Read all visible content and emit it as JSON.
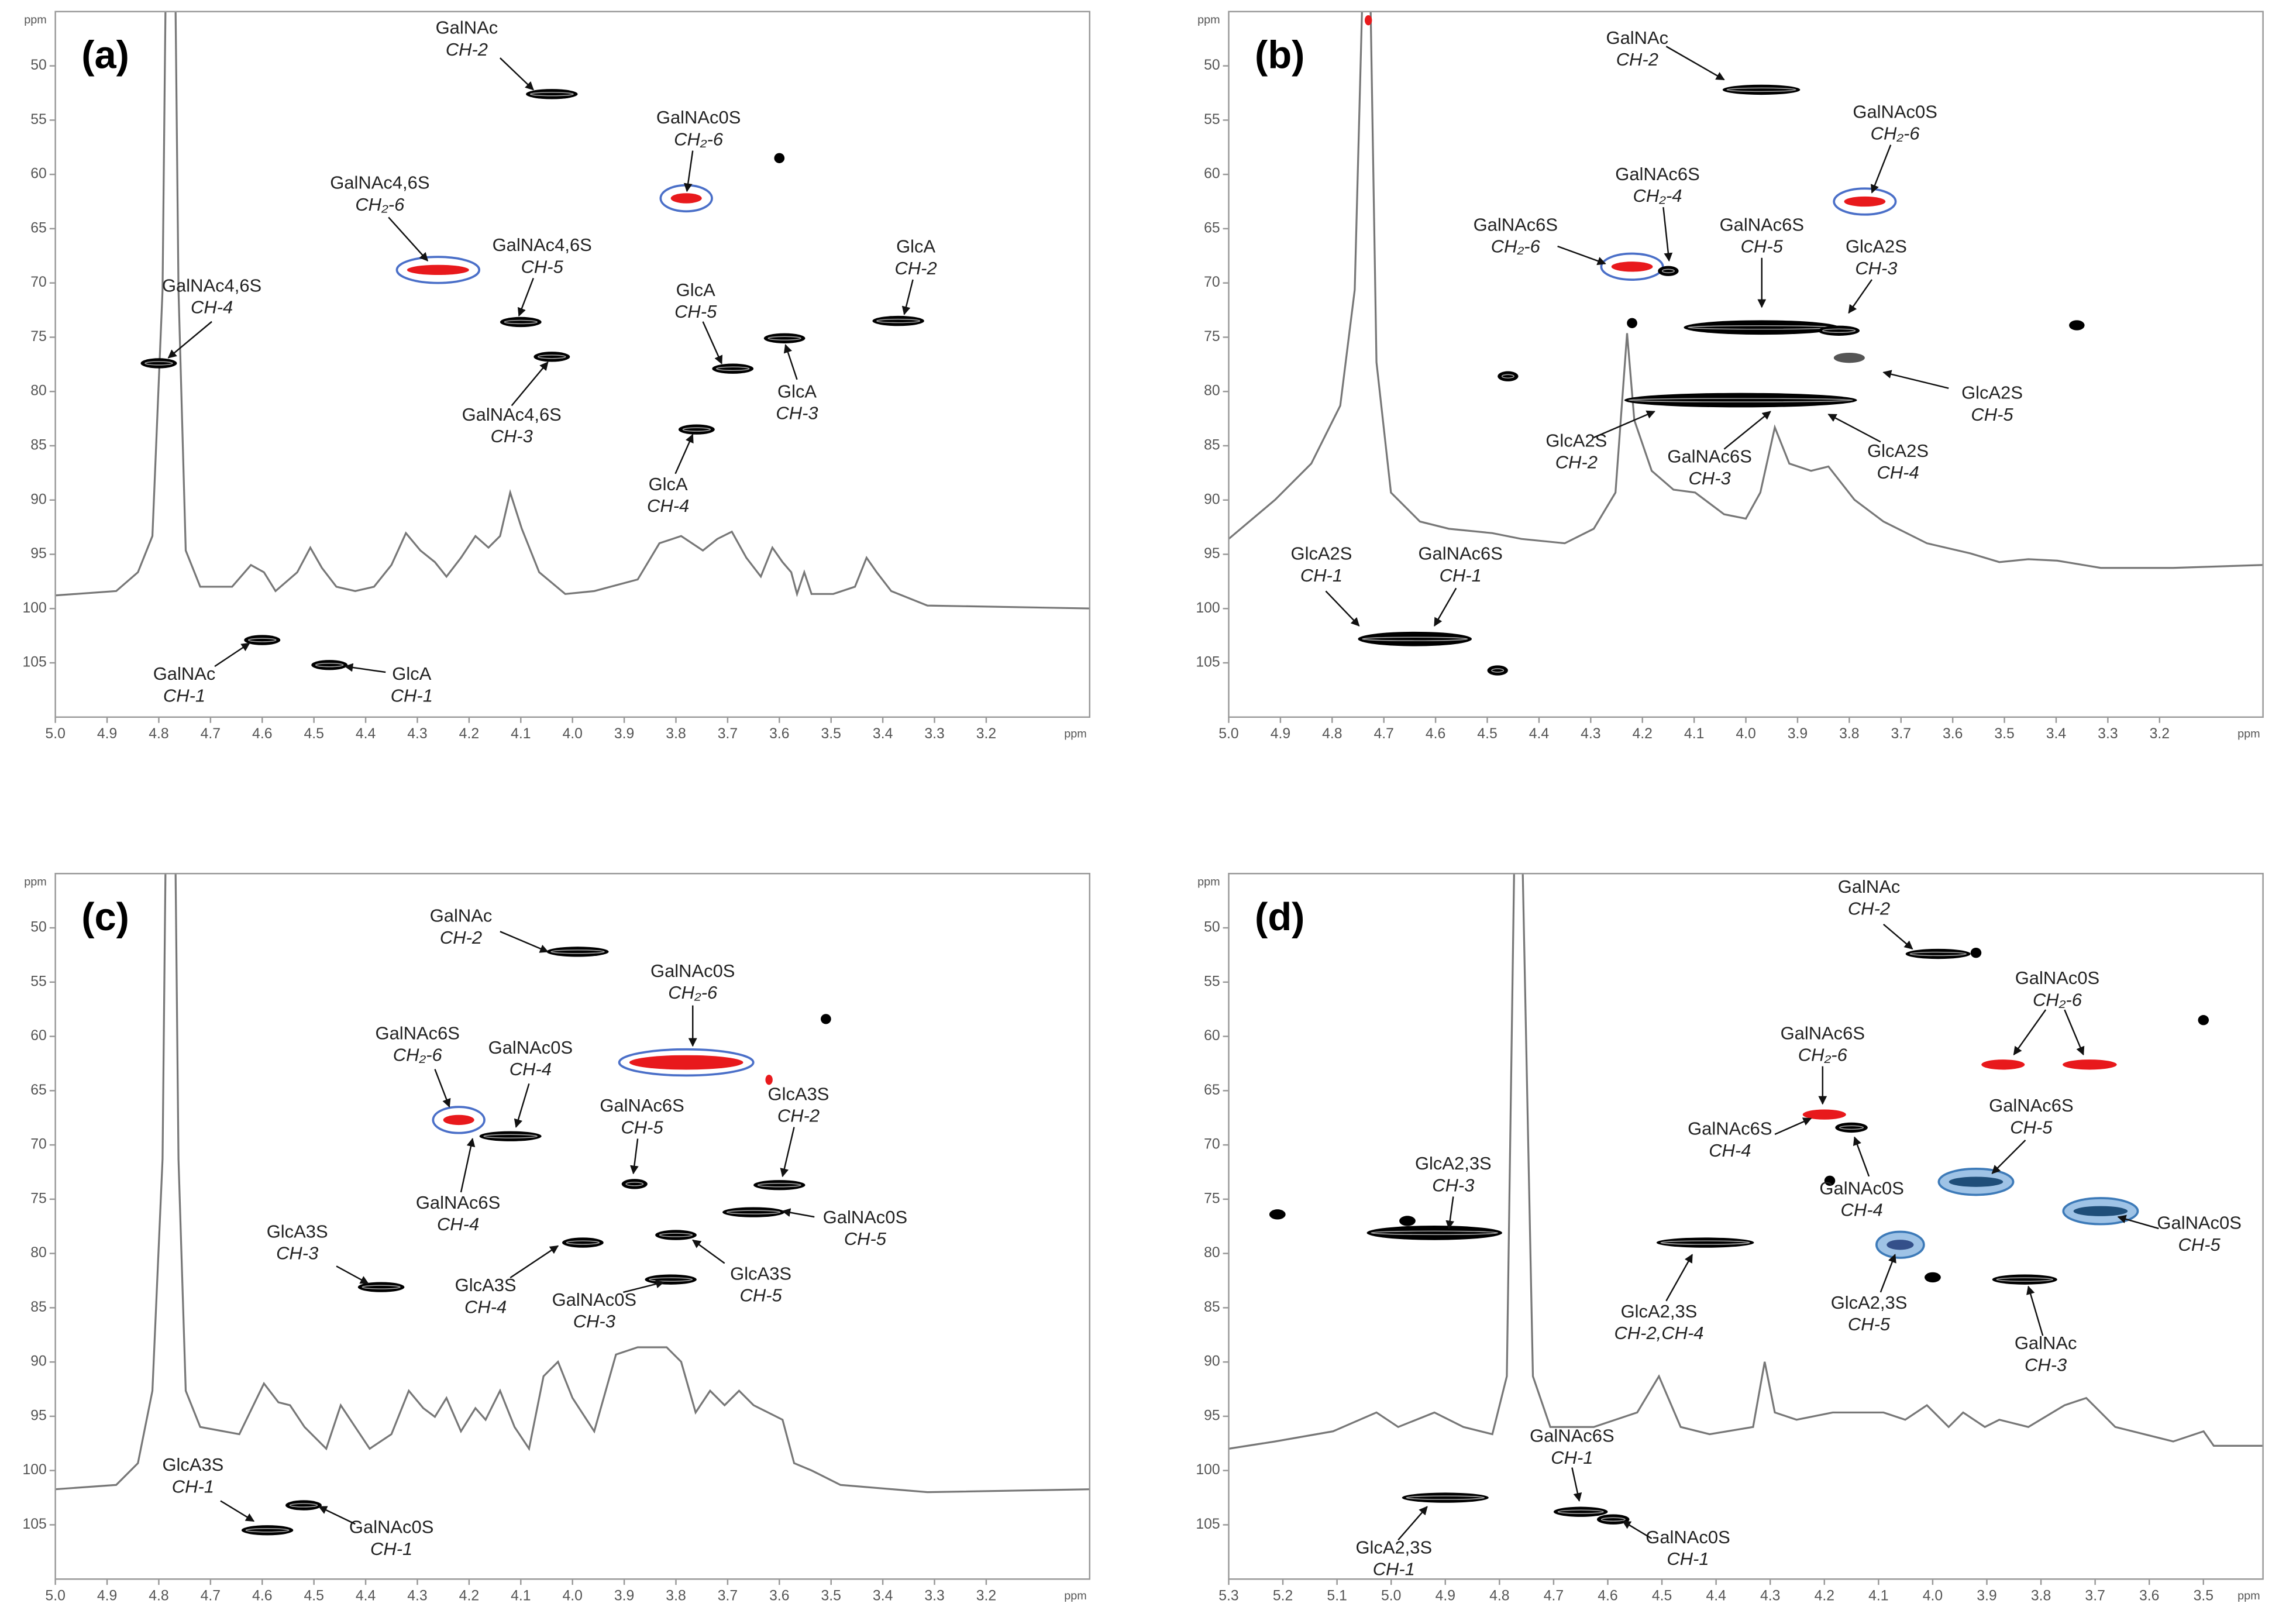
{
  "chart_data": [
    {
      "type": "scatter",
      "label": "(a)",
      "x_label": "ppm",
      "y_label": "ppm",
      "xlim": [
        5.0,
        3.0
      ],
      "ylim": [
        45,
        110
      ],
      "xticks": [
        {
          "value": 5.0,
          "label": "5.0"
        },
        4.9,
        4.8,
        4.7,
        4.6,
        4.5,
        4.4,
        4.3,
        4.2,
        4.1,
        {
          "value": 4.0,
          "label": "4.0"
        },
        3.9,
        3.8,
        3.7,
        3.6,
        3.5,
        3.4,
        3.3,
        3.2
      ],
      "yticks": [
        50,
        55,
        60,
        65,
        70,
        75,
        80,
        85,
        90,
        95,
        100,
        105
      ],
      "x": [
        4.04,
        3.78,
        3.6,
        4.26,
        4.1,
        4.04,
        3.37,
        3.69,
        3.59,
        3.76,
        4.8,
        4.6,
        4.47
      ],
      "y": [
        52.6,
        62.2,
        58.5,
        68.8,
        73.6,
        76.8,
        73.5,
        77.9,
        75.1,
        83.5,
        77.4,
        102.9,
        105.2
      ],
      "widths": [
        0.1,
        0.06,
        0.02,
        0.12,
        0.08,
        0.07,
        0.1,
        0.08,
        0.08,
        0.07,
        0.07,
        0.07,
        0.07
      ],
      "colors": [
        "#000",
        "#e8191c",
        "#000",
        "#e8191c",
        "#000",
        "#000",
        "#000",
        "#000",
        "#000",
        "#000",
        "#000",
        "#000",
        "#000"
      ],
      "rings": [
        false,
        true,
        false,
        true,
        false,
        false,
        false,
        false,
        false,
        false,
        false,
        false,
        false
      ],
      "ring_color": "#4a6fc8",
      "annotations": [
        [
          "GalNAc",
          "CH-2"
        ],
        [
          "GalNAc0S",
          "CH₂-6"
        ],
        [
          "GalNAc4,6S",
          "CH₂-6"
        ],
        [
          "GalNAc4,6S",
          "CH-5"
        ],
        [
          "GalNAc4,6S",
          "CH-3"
        ],
        [
          "GlcA",
          "CH-2"
        ],
        [
          "GlcA",
          "CH-5"
        ],
        [
          "GlcA",
          "CH-3"
        ],
        [
          "GlcA",
          "CH-4"
        ],
        [
          "GalNAc4,6S",
          "CH-4"
        ],
        [
          "GalNAc",
          "CH-1"
        ],
        [
          "GlcA",
          "CH-1"
        ]
      ]
    },
    {
      "type": "scatter",
      "label": "(b)",
      "x_label": "ppm",
      "y_label": "ppm",
      "xlim": [
        5.0,
        3.0
      ],
      "ylim": [
        45,
        110
      ],
      "xticks": [
        {
          "value": 5.0,
          "label": "5.0"
        },
        4.9,
        4.8,
        4.7,
        4.6,
        4.5,
        4.4,
        4.3,
        4.2,
        4.1,
        {
          "value": 4.0,
          "label": "4.0"
        },
        3.9,
        3.8,
        3.7,
        3.6,
        3.5,
        3.4,
        3.3,
        3.2
      ],
      "yticks": [
        50,
        55,
        60,
        65,
        70,
        75,
        80,
        85,
        90,
        95,
        100,
        105
      ],
      "x": [
        3.97,
        3.77,
        4.22,
        4.15,
        3.97,
        3.82,
        3.8,
        4.01,
        4.64,
        4.46,
        4.48,
        4.73,
        3.36,
        4.22
      ],
      "y": [
        52.2,
        62.5,
        68.5,
        68.9,
        74.1,
        74.4,
        76.9,
        80.8,
        102.8,
        78.6,
        105.7,
        45.8,
        73.9,
        73.7
      ],
      "widths": [
        0.15,
        0.08,
        0.08,
        0.04,
        0.3,
        0.08,
        0.06,
        0.45,
        0.22,
        0.04,
        0.04,
        0.01,
        0.03,
        0.02
      ],
      "colors": [
        "#000",
        "#e8191c",
        "#e8191c",
        "#000",
        "#000",
        "#000",
        "#555",
        "#000",
        "#000",
        "#000",
        "#000",
        "#e8191c",
        "#000",
        "#000"
      ],
      "rings": [
        false,
        true,
        true,
        false,
        false,
        false,
        false,
        false,
        false,
        false,
        false,
        false,
        false,
        false
      ],
      "ring_color": "#4a6fc8",
      "annotations": [
        [
          "GalNAc",
          "CH-2"
        ],
        [
          "GalNAc0S",
          "CH₂-6"
        ],
        [
          "GalNAc6S",
          "CH₂-4"
        ],
        [
          "GalNAc6S",
          "CH₂-6"
        ],
        [
          "GalNAc6S",
          "CH-5"
        ],
        [
          "GlcA2S",
          "CH-3"
        ],
        [
          "GlcA2S",
          "CH-5"
        ],
        [
          "GlcA2S",
          "CH-2"
        ],
        [
          "GalNAc6S",
          "CH-3"
        ],
        [
          "GlcA2S",
          "CH-4"
        ],
        [
          "GlcA2S",
          "CH-1"
        ],
        [
          "GalNAc6S",
          "CH-1"
        ]
      ]
    },
    {
      "type": "scatter",
      "label": "(c)",
      "x_label": "ppm",
      "y_label": "ppm",
      "xlim": [
        5.0,
        3.0
      ],
      "ylim": [
        45,
        110
      ],
      "xticks": [
        {
          "value": 5.0,
          "label": "5.0"
        },
        4.9,
        4.8,
        4.7,
        4.6,
        4.5,
        4.4,
        4.3,
        4.2,
        4.1,
        {
          "value": 4.0,
          "label": "4.0"
        },
        3.9,
        3.8,
        3.7,
        3.6,
        3.5,
        3.4,
        3.3,
        3.2
      ],
      "yticks": [
        50,
        55,
        60,
        65,
        70,
        75,
        80,
        85,
        90,
        95,
        100,
        105
      ],
      "x": [
        3.99,
        3.78,
        3.62,
        3.51,
        4.22,
        4.12,
        3.6,
        3.88,
        3.65,
        3.98,
        3.8,
        3.81,
        4.37,
        4.59,
        4.52
      ],
      "y": [
        52.2,
        62.4,
        64.0,
        58.4,
        67.7,
        69.2,
        73.7,
        73.6,
        76.2,
        79.0,
        78.3,
        82.4,
        83.1,
        105.5,
        103.2
      ],
      "widths": [
        0.12,
        0.22,
        0.01,
        0.02,
        0.06,
        0.12,
        0.1,
        0.05,
        0.12,
        0.08,
        0.08,
        0.1,
        0.09,
        0.1,
        0.07
      ],
      "colors": [
        "#000",
        "#e8191c",
        "#e8191c",
        "#000",
        "#e8191c",
        "#000",
        "#000",
        "#000",
        "#000",
        "#000",
        "#000",
        "#000",
        "#000",
        "#000",
        "#000"
      ],
      "rings": [
        false,
        true,
        false,
        false,
        true,
        false,
        false,
        false,
        false,
        false,
        false,
        false,
        false,
        false,
        false
      ],
      "ring_color": "#4a6fc8",
      "annotations": [
        [
          "GalNAc",
          "CH-2"
        ],
        [
          "GalNAc0S",
          "CH₂-6"
        ],
        [
          "GalNAc6S",
          "CH₂-6"
        ],
        [
          "GalNAc0S",
          "CH-4"
        ],
        [
          "GalNAc6S",
          "CH-4"
        ],
        [
          "GalNAc6S",
          "CH-5"
        ],
        [
          "GlcA3S",
          "CH-2"
        ],
        [
          "GalNAc0S",
          "CH-5"
        ],
        [
          "GlcA3S",
          "CH-3"
        ],
        [
          "GlcA3S",
          "CH-4"
        ],
        [
          "GalNAc0S",
          "CH-3"
        ],
        [
          "GlcA3S",
          "CH-5"
        ],
        [
          "GlcA3S",
          "CH-1"
        ],
        [
          "GalNAc0S",
          "CH-1"
        ]
      ]
    },
    {
      "type": "scatter",
      "label": "(d)",
      "x_label": "ppm",
      "y_label": "ppm",
      "xlim": [
        5.3,
        3.39
      ],
      "ylim": [
        45,
        110
      ],
      "xticks": [
        5.3,
        5.2,
        5.1,
        {
          "value": 5.0,
          "label": "5.0"
        },
        4.9,
        4.8,
        4.7,
        4.6,
        4.5,
        4.4,
        4.3,
        4.2,
        4.1,
        {
          "value": 4.0,
          "label": "4.0"
        },
        3.9,
        3.8,
        3.7,
        3.6,
        3.5
      ],
      "yticks": [
        50,
        55,
        60,
        65,
        70,
        75,
        80,
        85,
        90,
        95,
        100,
        105
      ],
      "x": [
        3.99,
        3.92,
        3.87,
        3.71,
        3.5,
        4.2,
        4.15,
        3.92,
        3.69,
        4.92,
        4.42,
        4.06,
        3.83,
        4.19,
        4.0,
        5.21,
        4.97,
        4.9,
        4.65,
        4.59
      ],
      "y": [
        52.4,
        52.3,
        62.6,
        62.6,
        58.5,
        67.2,
        68.4,
        73.4,
        76.1,
        78.1,
        79.0,
        79.2,
        82.4,
        73.3,
        82.2,
        76.4,
        77.0,
        102.5,
        103.8,
        104.5
      ],
      "widths": [
        0.12,
        0.02,
        0.08,
        0.1,
        0.02,
        0.08,
        0.06,
        0.1,
        0.1,
        0.25,
        0.18,
        0.05,
        0.12,
        0.02,
        0.03,
        0.03,
        0.03,
        0.16,
        0.1,
        0.06
      ],
      "colors": [
        "#000",
        "#000",
        "#e8191c",
        "#e8191c",
        "#000",
        "#e8191c",
        "#000",
        "#1f4e79",
        "#1f4e79",
        "#000",
        "#000",
        "#34508a",
        "#000",
        "#000",
        "#000",
        "#000",
        "#000",
        "#000",
        "#000",
        "#000"
      ],
      "rings": [
        false,
        false,
        false,
        false,
        false,
        false,
        false,
        true,
        true,
        false,
        false,
        true,
        false,
        false,
        false,
        false,
        false,
        false,
        false,
        false
      ],
      "ring_color": "#3d7ab8",
      "annotations": [
        [
          "GalNAc",
          "CH-2"
        ],
        [
          "GalNAc0S",
          "CH₂-6"
        ],
        [
          "GalNAc6S",
          "CH₂-6"
        ],
        [
          "GalNAc6S",
          "CH-4"
        ],
        [
          "GalNAc0S",
          "CH-4"
        ],
        [
          "GalNAc6S",
          "CH-5"
        ],
        [
          "GalNAc0S",
          "CH-5"
        ],
        [
          "GlcA2,3S",
          "CH-3"
        ],
        [
          "GlcA2,3S",
          "CH-2,CH-4"
        ],
        [
          "GlcA2,3S",
          "CH-5"
        ],
        [
          "GalNAc",
          "CH-3"
        ],
        [
          "GalNAc6S",
          "CH-1"
        ],
        [
          "GlcA2,3S",
          "CH-1"
        ],
        [
          "GalNAc0S",
          "CH-1"
        ]
      ]
    }
  ]
}
